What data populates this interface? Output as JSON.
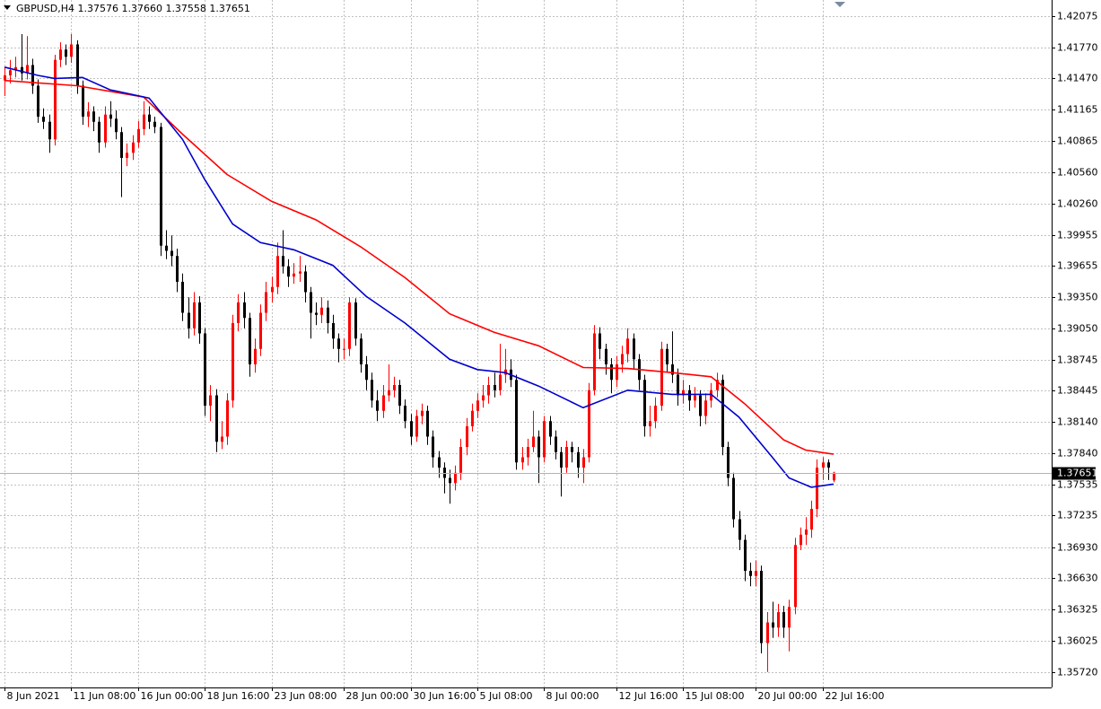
{
  "chart_data": {
    "type": "candlestick",
    "title": "GBPUSD,H4  1.37576 1.37660 1.37558 1.37651",
    "up_color": "#ff0000",
    "down_color": "#000000",
    "grid": true,
    "grid_color": "#c0c0c0",
    "xlim": [
      -0.8,
      188.2
    ],
    "ylim": [
      1.3557,
      1.4223
    ],
    "xticks": [
      {
        "value": 0,
        "label": "8 Jun 2021"
      },
      {
        "value": 12,
        "label": "11 Jun 08:00"
      },
      {
        "value": 24,
        "label": "16 Jun 00:00"
      },
      {
        "value": 36,
        "label": "18 Jun 16:00"
      },
      {
        "value": 48,
        "label": "23 Jun 08:00"
      },
      {
        "value": 61,
        "label": "28 Jun 00:00"
      },
      {
        "value": 73,
        "label": "30 Jun 16:00"
      },
      {
        "value": 85,
        "label": "5 Jul 08:00"
      },
      {
        "value": 97,
        "label": "8 Jul 00:00"
      },
      {
        "value": 110,
        "label": "12 Jul 16:00"
      },
      {
        "value": 122,
        "label": "15 Jul 08:00"
      },
      {
        "value": 135,
        "label": "20 Jul 00:00"
      },
      {
        "value": 147,
        "label": "22 Jul 16:00"
      }
    ],
    "yticks": [
      1.42075,
      {
        "value": 1.4177,
        "label": "1.41770"
      },
      {
        "value": 1.4147,
        "label": "1.41470"
      },
      1.41165,
      1.40865,
      {
        "value": 1.4056,
        "label": "1.40560"
      },
      {
        "value": 1.4026,
        "label": "1.40260"
      },
      1.39955,
      1.39655,
      {
        "value": 1.3935,
        "label": "1.39350"
      },
      {
        "value": 1.3905,
        "label": "1.39050"
      },
      1.38745,
      1.38445,
      {
        "value": 1.3814,
        "label": "1.38140"
      },
      {
        "value": 1.3784,
        "label": "1.37840"
      },
      1.37535,
      1.37235,
      {
        "value": 1.3693,
        "label": "1.36930"
      },
      {
        "value": 1.3663,
        "label": "1.36630"
      },
      1.36325,
      1.36025,
      {
        "value": 1.3572,
        "label": "1.35720"
      }
    ],
    "open": [
      1.4145,
      1.415,
      1.4155,
      1.4158,
      1.4152,
      1.416,
      1.414,
      1.411,
      1.4105,
      1.4088,
      1.4165,
      1.4175,
      1.4168,
      1.418,
      1.414,
      1.411,
      1.4115,
      1.4105,
      1.4085,
      1.4112,
      1.4108,
      1.4095,
      1.407,
      1.4075,
      1.4085,
      1.4098,
      1.4112,
      1.4105,
      1.41,
      1.3985,
      1.398,
      1.3975,
      1.395,
      1.392,
      1.3905,
      1.393,
      1.39,
      1.383,
      1.384,
      1.3795,
      1.38,
      1.3835,
      1.391,
      1.393,
      1.3915,
      1.387,
      1.3885,
      1.392,
      1.394,
      1.3945,
      1.3975,
      1.3965,
      1.3955,
      1.3958,
      1.396,
      1.394,
      1.392,
      1.3918,
      1.3925,
      1.391,
      1.3895,
      1.3885,
      1.3885,
      1.393,
      1.3895,
      1.387,
      1.3855,
      1.3835,
      1.3825,
      1.384,
      1.3845,
      1.385,
      1.383,
      1.3815,
      1.38,
      1.382,
      1.3825,
      1.38,
      1.378,
      1.377,
      1.376,
      1.3755,
      1.3765,
      1.379,
      1.381,
      1.3825,
      1.3835,
      1.384,
      1.385,
      1.3845,
      1.386,
      1.3865,
      1.3855,
      1.3775,
      1.378,
      1.379,
      1.38,
      1.378,
      1.3815,
      1.38,
      1.3785,
      1.377,
      1.379,
      1.3785,
      1.377,
      1.378,
      1.3845,
      1.39,
      1.3885,
      1.387,
      1.3855,
      1.387,
      1.388,
      1.3895,
      1.3875,
      1.3855,
      1.381,
      1.3815,
      1.383,
      1.3885,
      1.387,
      1.386,
      1.384,
      1.3845,
      1.3835,
      1.384,
      1.382,
      1.3835,
      1.3845,
      1.3855,
      1.379,
      1.376,
      1.372,
      1.37,
      1.367,
      1.3665,
      1.367,
      1.36,
      1.362,
      1.3615,
      1.363,
      1.3615,
      1.3635,
      1.3695,
      1.3705,
      1.371,
      1.373,
      1.377,
      1.3775,
      1.37576
    ],
    "high": [
      1.4158,
      1.4165,
      1.4168,
      1.419,
      1.4188,
      1.4166,
      1.4146,
      1.4118,
      1.4112,
      1.417,
      1.4182,
      1.418,
      1.419,
      1.4184,
      1.4145,
      1.4124,
      1.412,
      1.411,
      1.412,
      1.4125,
      1.4116,
      1.41,
      1.4084,
      1.4092,
      1.4106,
      1.4125,
      1.412,
      1.411,
      1.4104,
      1.4,
      1.3995,
      1.3982,
      1.3958,
      1.3935,
      1.394,
      1.3936,
      1.3905,
      1.385,
      1.3846,
      1.3815,
      1.3842,
      1.3918,
      1.3938,
      1.394,
      1.392,
      1.3895,
      1.3928,
      1.395,
      1.3955,
      1.3988,
      1.4,
      1.3972,
      1.3968,
      1.3975,
      1.3966,
      1.3945,
      1.393,
      1.3935,
      1.3932,
      1.3918,
      1.39,
      1.3895,
      1.3935,
      1.3934,
      1.39,
      1.3878,
      1.3862,
      1.3845,
      1.385,
      1.387,
      1.3858,
      1.3855,
      1.3836,
      1.3822,
      1.3826,
      1.3832,
      1.383,
      1.3806,
      1.3786,
      1.3775,
      1.3768,
      1.3772,
      1.3798,
      1.3818,
      1.3832,
      1.3842,
      1.385,
      1.3858,
      1.3862,
      1.389,
      1.3885,
      1.3875,
      1.386,
      1.379,
      1.3798,
      1.3825,
      1.3806,
      1.382,
      1.382,
      1.3806,
      1.379,
      1.3796,
      1.3795,
      1.379,
      1.3788,
      1.3852,
      1.3908,
      1.3906,
      1.389,
      1.3876,
      1.3878,
      1.3888,
      1.3905,
      1.39,
      1.388,
      1.386,
      1.383,
      1.3838,
      1.3892,
      1.389,
      1.3902,
      1.3866,
      1.3855,
      1.385,
      1.3848,
      1.3845,
      1.3842,
      1.3852,
      1.3862,
      1.386,
      1.3795,
      1.3765,
      1.3728,
      1.3705,
      1.3678,
      1.368,
      1.3675,
      1.363,
      1.364,
      1.3638,
      1.3636,
      1.3642,
      1.3702,
      1.3712,
      1.3722,
      1.3738,
      1.3778,
      1.378,
      1.3778,
      1.3766
    ],
    "low": [
      1.413,
      1.4142,
      1.4148,
      1.4145,
      1.4146,
      1.4132,
      1.4104,
      1.4098,
      1.4075,
      1.4082,
      1.4158,
      1.416,
      1.4162,
      1.4132,
      1.4102,
      1.41,
      1.4096,
      1.4075,
      1.408,
      1.41,
      1.4088,
      1.4032,
      1.4062,
      1.4068,
      1.408,
      1.4092,
      1.4098,
      1.4094,
      1.3975,
      1.3972,
      1.3965,
      1.394,
      1.3912,
      1.3895,
      1.3898,
      1.389,
      1.382,
      1.3815,
      1.3785,
      1.3788,
      1.3792,
      1.3828,
      1.3902,
      1.3905,
      1.3858,
      1.3862,
      1.3878,
      1.3912,
      1.393,
      1.3938,
      1.3958,
      1.3945,
      1.3948,
      1.395,
      1.393,
      1.3895,
      1.3908,
      1.391,
      1.39,
      1.3885,
      1.3872,
      1.3875,
      1.3878,
      1.3888,
      1.3862,
      1.3845,
      1.3828,
      1.3815,
      1.3818,
      1.3834,
      1.3838,
      1.3822,
      1.3808,
      1.3792,
      1.3795,
      1.3812,
      1.3792,
      1.377,
      1.376,
      1.3745,
      1.3735,
      1.3748,
      1.3758,
      1.3782,
      1.3805,
      1.3818,
      1.3828,
      1.3832,
      1.3838,
      1.384,
      1.3852,
      1.3848,
      1.3768,
      1.3768,
      1.3772,
      1.3785,
      1.3755,
      1.3775,
      1.3792,
      1.3778,
      1.3742,
      1.3765,
      1.3775,
      1.376,
      1.3755,
      1.3775,
      1.384,
      1.3875,
      1.386,
      1.3842,
      1.3848,
      1.3862,
      1.3872,
      1.3866,
      1.3845,
      1.38,
      1.38,
      1.3808,
      1.3825,
      1.3862,
      1.3852,
      1.383,
      1.3832,
      1.3825,
      1.3828,
      1.381,
      1.3812,
      1.3828,
      1.3838,
      1.3782,
      1.3752,
      1.3712,
      1.369,
      1.366,
      1.3655,
      1.3655,
      1.359,
      1.3572,
      1.3605,
      1.3606,
      1.3605,
      1.3592,
      1.3628,
      1.369,
      1.3695,
      1.3702,
      1.3722,
      1.3758,
      1.3758,
      1.37558
    ],
    "close": [
      1.415,
      1.4155,
      1.4158,
      1.4152,
      1.416,
      1.414,
      1.411,
      1.4105,
      1.4088,
      1.4165,
      1.4175,
      1.4168,
      1.418,
      1.414,
      1.411,
      1.4115,
      1.4105,
      1.4085,
      1.4112,
      1.4108,
      1.4095,
      1.407,
      1.4075,
      1.4085,
      1.4098,
      1.4112,
      1.4105,
      1.41,
      1.3985,
      1.398,
      1.3975,
      1.395,
      1.392,
      1.3905,
      1.393,
      1.39,
      1.383,
      1.384,
      1.3795,
      1.38,
      1.3835,
      1.391,
      1.393,
      1.3915,
      1.387,
      1.3885,
      1.392,
      1.394,
      1.3945,
      1.3975,
      1.3965,
      1.3955,
      1.3958,
      1.396,
      1.394,
      1.392,
      1.3918,
      1.3925,
      1.391,
      1.3895,
      1.3885,
      1.3885,
      1.393,
      1.3895,
      1.387,
      1.3855,
      1.3835,
      1.3825,
      1.384,
      1.3845,
      1.385,
      1.383,
      1.3815,
      1.38,
      1.382,
      1.3825,
      1.38,
      1.378,
      1.377,
      1.376,
      1.3755,
      1.3765,
      1.379,
      1.381,
      1.3825,
      1.3835,
      1.384,
      1.385,
      1.3845,
      1.386,
      1.3865,
      1.3855,
      1.3775,
      1.378,
      1.379,
      1.38,
      1.378,
      1.3815,
      1.38,
      1.3785,
      1.377,
      1.379,
      1.3785,
      1.377,
      1.378,
      1.3845,
      1.39,
      1.3885,
      1.387,
      1.3855,
      1.387,
      1.388,
      1.3895,
      1.3875,
      1.3855,
      1.381,
      1.3815,
      1.383,
      1.3885,
      1.387,
      1.386,
      1.384,
      1.3845,
      1.3835,
      1.384,
      1.382,
      1.3835,
      1.3845,
      1.3855,
      1.379,
      1.376,
      1.372,
      1.37,
      1.367,
      1.3665,
      1.367,
      1.36,
      1.362,
      1.3615,
      1.363,
      1.3615,
      1.3635,
      1.3695,
      1.3705,
      1.371,
      1.373,
      1.377,
      1.3775,
      1.377,
      1.37651
    ],
    "lines": [
      {
        "color": "#ff0000",
        "x": [
          0,
          13,
          25,
          32,
          40,
          48,
          56,
          64,
          72,
          80,
          88,
          96,
          104,
          112,
          120,
          127,
          133,
          140,
          144,
          149
        ],
        "values": [
          1.4145,
          1.414,
          1.4129,
          1.4093,
          1.4054,
          1.4028,
          1.401,
          1.3984,
          1.3954,
          1.3919,
          1.3901,
          1.3888,
          1.3867,
          1.3866,
          1.3862,
          1.3858,
          1.3832,
          1.3797,
          1.3787,
          1.3783
        ]
      },
      {
        "color": "#0000cd",
        "x": [
          0,
          6,
          9,
          14,
          19,
          26,
          32,
          36,
          41,
          46,
          52,
          59,
          65,
          72,
          80,
          85,
          90,
          96,
          104,
          112,
          120,
          127,
          132,
          138,
          141,
          145,
          149
        ],
        "values": [
          1.4158,
          1.415,
          1.4147,
          1.4148,
          1.4136,
          1.4128,
          1.4088,
          1.4049,
          1.4006,
          1.3988,
          1.3981,
          1.3966,
          1.3936,
          1.391,
          1.3875,
          1.3865,
          1.3862,
          1.3849,
          1.3828,
          1.3845,
          1.3841,
          1.3841,
          1.3819,
          1.378,
          1.376,
          1.3751,
          1.3754
        ]
      }
    ]
  }
}
